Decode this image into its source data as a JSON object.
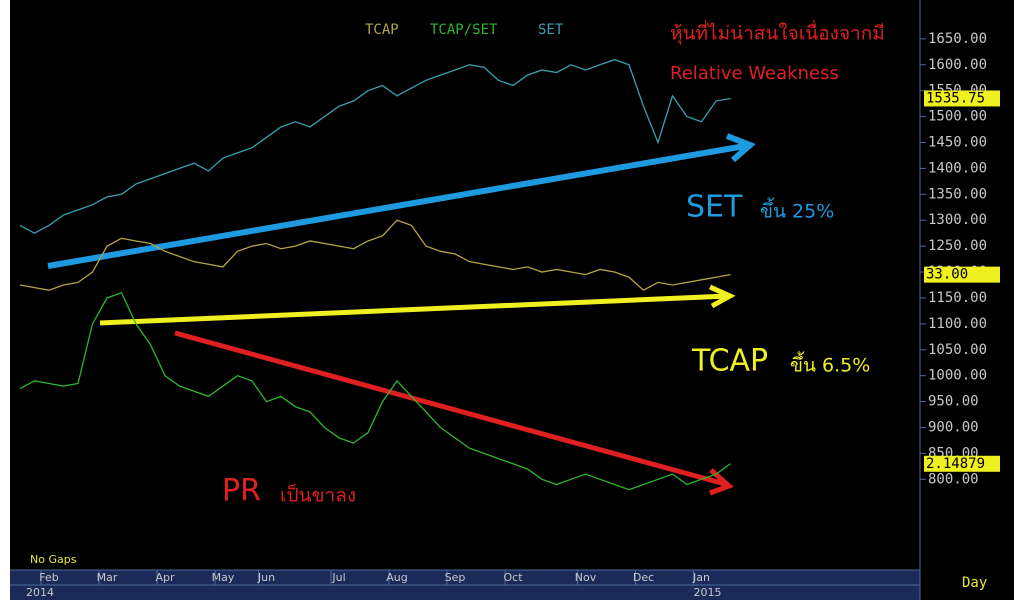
{
  "chart_data": {
    "type": "line",
    "categories": [
      null,
      null,
      "Feb",
      null,
      null,
      null,
      "Mar",
      null,
      null,
      null,
      "Apr",
      null,
      null,
      null,
      "May",
      null,
      null,
      "Jun",
      null,
      null,
      null,
      null,
      "Jul",
      null,
      null,
      null,
      "Aug",
      null,
      null,
      null,
      "Sep",
      null,
      null,
      null,
      "Oct",
      null,
      null,
      null,
      null,
      "Nov",
      null,
      null,
      null,
      "Dec",
      null,
      null,
      null,
      "Jan",
      null,
      null
    ],
    "year_labels": [
      "2014",
      null,
      null,
      null,
      null,
      null,
      null,
      null,
      null,
      null,
      null,
      null,
      null,
      null,
      null,
      null,
      null,
      null,
      null,
      null,
      null,
      null,
      null,
      null,
      null,
      null,
      null,
      null,
      null,
      null,
      null,
      null,
      null,
      null,
      null,
      null,
      null,
      null,
      null,
      null,
      null,
      null,
      null,
      null,
      null,
      null,
      null,
      "2015",
      null,
      null
    ],
    "series": [
      {
        "name": "TCAP",
        "color": "#b3a445",
        "last_label": "33.00",
        "values": [
          1175,
          1170,
          1165,
          1175,
          1180,
          1200,
          1250,
          1265,
          1260,
          1255,
          1240,
          1230,
          1220,
          1215,
          1210,
          1240,
          1250,
          1255,
          1245,
          1250,
          1260,
          1255,
          1250,
          1245,
          1260,
          1270,
          1300,
          1290,
          1250,
          1240,
          1235,
          1220,
          1215,
          1210,
          1205,
          1210,
          1200,
          1205,
          1200,
          1195,
          1205,
          1200,
          1190,
          1165,
          1180,
          1175,
          1180,
          1185,
          1190,
          1195
        ]
      },
      {
        "name": "TCAP/SET",
        "color": "#2fb52f",
        "last_label": "2.14879",
        "values": [
          975,
          990,
          985,
          980,
          985,
          1100,
          1150,
          1160,
          1100,
          1060,
          1000,
          980,
          970,
          960,
          980,
          1000,
          990,
          950,
          960,
          940,
          930,
          900,
          880,
          870,
          890,
          950,
          990,
          960,
          930,
          900,
          880,
          860,
          850,
          840,
          830,
          820,
          800,
          790,
          800,
          810,
          800,
          790,
          780,
          790,
          800,
          810,
          790,
          800,
          810,
          830
        ]
      },
      {
        "name": "SET",
        "color": "#3aa0b0",
        "last_label": "1535.75",
        "values": [
          1290,
          1275,
          1290,
          1310,
          1320,
          1330,
          1345,
          1350,
          1370,
          1380,
          1390,
          1400,
          1410,
          1395,
          1420,
          1430,
          1440,
          1460,
          1480,
          1490,
          1480,
          1500,
          1520,
          1530,
          1550,
          1560,
          1540,
          1555,
          1570,
          1580,
          1590,
          1600,
          1595,
          1570,
          1560,
          1580,
          1590,
          1585,
          1600,
          1590,
          1600,
          1610,
          1600,
          1520,
          1450,
          1540,
          1500,
          1490,
          1530,
          1535
        ]
      }
    ],
    "ylim": [
      625,
      1725
    ],
    "yticks": [
      {
        "value": 800,
        "label": "800.00"
      },
      {
        "value": 850,
        "label": "850.00"
      },
      {
        "value": 900,
        "label": "900.00"
      },
      {
        "value": 950,
        "label": "950.00"
      },
      {
        "value": 1000,
        "label": "1000.00"
      },
      {
        "value": 1050,
        "label": "1050.00"
      },
      {
        "value": 1100,
        "label": "1100.00"
      },
      {
        "value": 1150,
        "label": "1150.00"
      },
      {
        "value": 1200,
        "label": "1200.00"
      },
      {
        "value": 1250,
        "label": "1250.00"
      },
      {
        "value": 1300,
        "label": "1300.00"
      },
      {
        "value": 1350,
        "label": "1350.00"
      },
      {
        "value": 1400,
        "label": "1400.00"
      },
      {
        "value": 1450,
        "label": "1450.00"
      },
      {
        "value": 1500,
        "label": "1500.00"
      },
      {
        "value": 1550,
        "label": "1550.00"
      },
      {
        "value": 1600,
        "label": "1600.00"
      },
      {
        "value": 1650,
        "label": "1650.00"
      }
    ],
    "x_unit": "Day",
    "footnote": "No Gaps",
    "annotations": {
      "headline": "หุ้นที่ไม่น่าสนใจเนื่องจากมี",
      "subheadline": "Relative Weakness",
      "set_name": "SET",
      "set_note": "ขึ้น 25%",
      "tcap_name": "TCAP",
      "tcap_note": "ขึ้น 6.5%",
      "pr_name": "PR",
      "pr_note": "เป็นขาลง"
    }
  }
}
